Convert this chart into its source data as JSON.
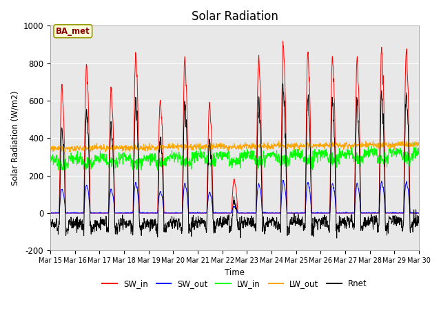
{
  "title": "Solar Radiation",
  "ylabel": "Solar Radiation (W/m2)",
  "xlabel": "Time",
  "ylim": [
    -200,
    1000
  ],
  "annotation": "BA_met",
  "legend_entries": [
    "SW_in",
    "SW_out",
    "LW_in",
    "LW_out",
    "Rnet"
  ],
  "legend_colors": [
    "red",
    "blue",
    "#00ff00",
    "orange",
    "black"
  ],
  "xtick_labels": [
    "Mar 15",
    "Mar 16",
    "Mar 17",
    "Mar 18",
    "Mar 19",
    "Mar 20",
    "Mar 21",
    "Mar 22",
    "Mar 23",
    "Mar 24",
    "Mar 25",
    "Mar 26",
    "Mar 27",
    "Mar 28",
    "Mar 29",
    "Mar 30"
  ],
  "axes_facecolor": "#e8e8e8",
  "grid_color": "white",
  "yticks": [
    -200,
    0,
    200,
    400,
    600,
    800,
    1000
  ]
}
